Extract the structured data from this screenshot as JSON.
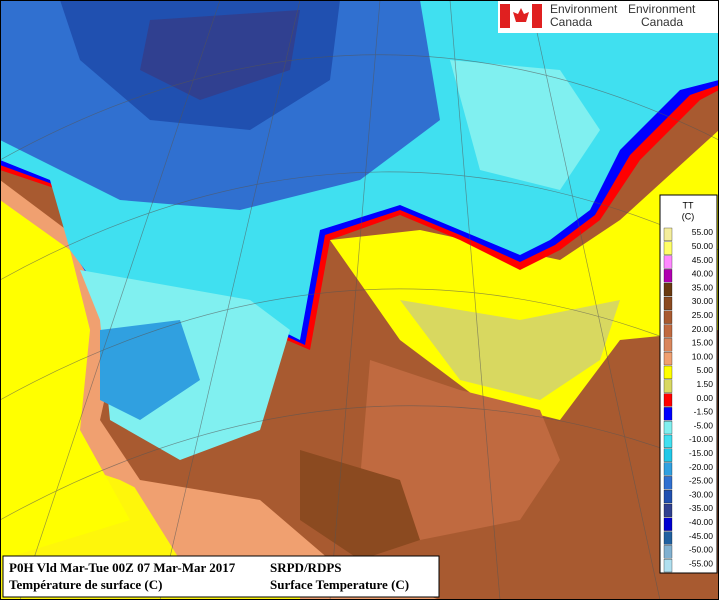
{
  "header": {
    "agency": [
      "Environment",
      "Canada"
    ],
    "agency_fr": [
      "Environment",
      "Canada"
    ]
  },
  "legend": {
    "title": "TT",
    "unit": "(C)",
    "items": [
      {
        "label": "55.00",
        "color": "#f4ee9c"
      },
      {
        "label": "50.00",
        "color": "#ffff66"
      },
      {
        "label": "45.00",
        "color": "#ff88ff"
      },
      {
        "label": "40.00",
        "color": "#b000b0"
      },
      {
        "label": "35.00",
        "color": "#6a3a10"
      },
      {
        "label": "30.00",
        "color": "#8b4a20"
      },
      {
        "label": "25.00",
        "color": "#a85a30"
      },
      {
        "label": "20.00",
        "color": "#c06a40"
      },
      {
        "label": "15.00",
        "color": "#d9865c"
      },
      {
        "label": "10.00",
        "color": "#f0a070"
      },
      {
        "label": "5.00",
        "color": "#ffff00"
      },
      {
        "label": "1.50",
        "color": "#d8d860"
      },
      {
        "label": "0.00",
        "color": "#ff0000"
      },
      {
        "label": "-1.50",
        "color": "#0000ff"
      },
      {
        "label": "-5.00",
        "color": "#80f0f0"
      },
      {
        "label": "-10.00",
        "color": "#40e0f0"
      },
      {
        "label": "-15.00",
        "color": "#20c8e8"
      },
      {
        "label": "-20.00",
        "color": "#30a0e0"
      },
      {
        "label": "-25.00",
        "color": "#3070d0"
      },
      {
        "label": "-30.00",
        "color": "#2050b0"
      },
      {
        "label": "-35.00",
        "color": "#304090"
      },
      {
        "label": "-40.00",
        "color": "#0000d0"
      },
      {
        "label": "-45.00",
        "color": "#2060a0"
      },
      {
        "label": "-50.00",
        "color": "#80b0d0"
      },
      {
        "label": "-55.00",
        "color": "#b0e0f0"
      }
    ]
  },
  "caption": {
    "left": [
      "P0H Vld Mar-Tue 00Z 07 Mar-Mar 2017",
      "Température de surface (C)"
    ],
    "right": [
      "SRPD/RDPS",
      "Surface Temperature (C)"
    ]
  }
}
